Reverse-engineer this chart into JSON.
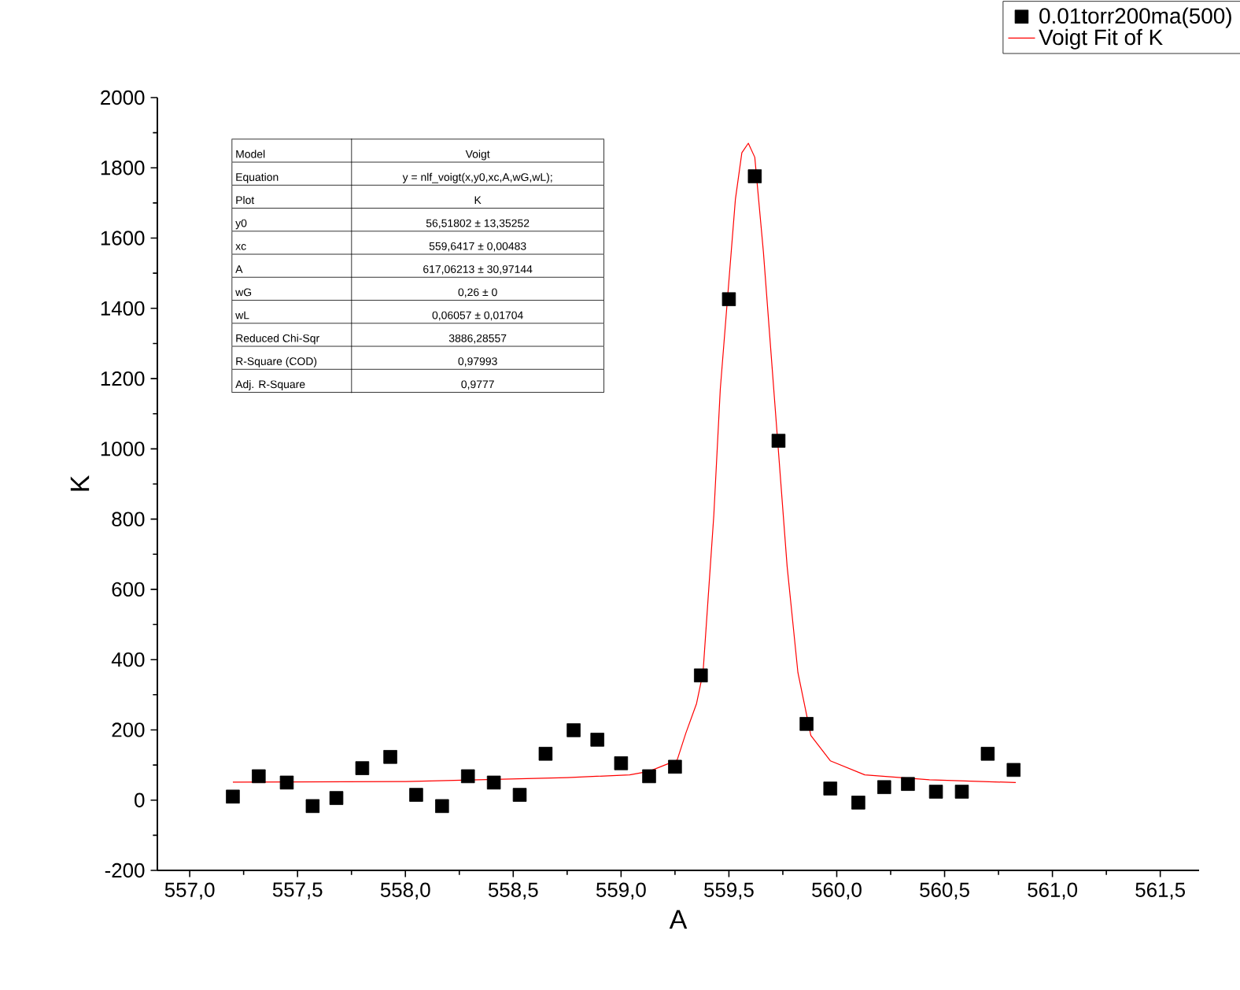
{
  "chart_data": {
    "type": "scatter",
    "xlabel": "A",
    "ylabel": "K",
    "series": [
      {
        "name": "0.01torr200ma(500)",
        "marker": "square",
        "color": "#000000",
        "x": [
          557.2,
          557.32,
          557.45,
          557.57,
          557.68,
          557.8,
          557.93,
          558.05,
          558.17,
          558.29,
          558.41,
          558.53,
          558.65,
          558.78,
          558.89,
          559.0,
          559.13,
          559.25,
          559.37,
          559.5,
          559.62,
          559.73,
          559.86,
          559.97,
          560.1,
          560.22,
          560.33,
          560.46,
          560.58,
          560.7,
          560.82
        ],
        "values": [
          10,
          68,
          50,
          -17,
          6,
          91,
          123,
          15,
          -17,
          68,
          50,
          15,
          132,
          199,
          172,
          105,
          68,
          95,
          355,
          1426,
          1776,
          1023,
          217,
          33,
          -7,
          37,
          46,
          24,
          24,
          132,
          86
        ]
      },
      {
        "name": "Voigt Fit of K",
        "type": "line",
        "marker": "none",
        "line_style": "solid",
        "color": "#ff0000",
        "x": [
          557.2,
          558.0,
          558.75,
          559.04,
          559.13,
          559.26,
          559.3,
          559.35,
          559.38,
          559.43,
          559.46,
          559.53,
          559.56,
          559.59,
          559.62,
          559.66,
          559.7,
          559.77,
          559.82,
          559.88,
          559.97,
          560.13,
          560.43,
          560.83
        ],
        "values": [
          51,
          53,
          64,
          72,
          82,
          114,
          190,
          275,
          363,
          811,
          1170,
          1710,
          1843,
          1870,
          1830,
          1560,
          1234,
          665,
          363,
          184,
          112,
          72,
          58,
          50
        ]
      }
    ],
    "xlim": [
      556.85,
      561.68
    ],
    "ylim": [
      -200,
      2000
    ],
    "xticks": [
      {
        "value": 557.0,
        "label": "557,0"
      },
      {
        "value": 557.5,
        "label": "557,5"
      },
      {
        "value": 558.0,
        "label": "558,0"
      },
      {
        "value": 558.5,
        "label": "558,5"
      },
      {
        "value": 559.0,
        "label": "559,0"
      },
      {
        "value": 559.5,
        "label": "559,5"
      },
      {
        "value": 560.0,
        "label": "560,0"
      },
      {
        "value": 560.5,
        "label": "560,5"
      },
      {
        "value": 561.0,
        "label": "561,0"
      },
      {
        "value": 561.5,
        "label": "561,5"
      }
    ],
    "yticks": [
      -200,
      0,
      200,
      400,
      600,
      800,
      1000,
      1200,
      1400,
      1600,
      1800,
      2000
    ],
    "legend": "top right",
    "annotations": [
      "Model",
      "Voigt",
      "Equation",
      "y = nlf_voigt(x,y0,xc,A,wG,wL);",
      "Plot",
      "K",
      "y0",
      "56,51802 ± 13,35252",
      "xc",
      "559,6417 ± 0,00483",
      "A",
      "617,06213 ± 30,97144",
      "wG",
      "0,26 ± 0",
      "wL",
      "0,06057 ± 0,01704",
      "Reduced Chi-Sqr",
      "3886,28557",
      "R-Square (COD)",
      "0,97993",
      "Adj. R-Square",
      "0,9777"
    ]
  }
}
